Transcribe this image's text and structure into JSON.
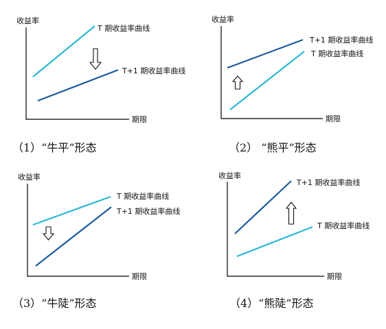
{
  "colors": {
    "t_curve": "#2bb7d6",
    "t1_curve": "#1a5a9c",
    "axis": "#000000"
  },
  "panels": [
    {
      "y_title": "收益率",
      "x_title": "期限",
      "t_label": "T 期收益率曲线",
      "t1_label": "T+1 期收益率曲线",
      "caption": "（1）“牛平”形态",
      "arrow": "down"
    },
    {
      "y_title": "收益率",
      "x_title": "期限",
      "t_label": "T 期收益率曲线",
      "t1_label": "T+1 期收益率曲线",
      "caption": "（2） “熊平”形态",
      "arrow": "up"
    },
    {
      "y_title": "收益率",
      "x_title": "期限",
      "t_label": "T 期收益率曲线",
      "t1_label": "T+1 期收益率曲线",
      "caption": "（3）“牛陡”形态",
      "arrow": "down"
    },
    {
      "y_title": "收益率",
      "x_title": "期限",
      "t_label": "T 期收益率曲线",
      "t1_label": "T+1 期收益率曲线",
      "caption": "（4）“熊陡”形态",
      "arrow": "up"
    }
  ]
}
